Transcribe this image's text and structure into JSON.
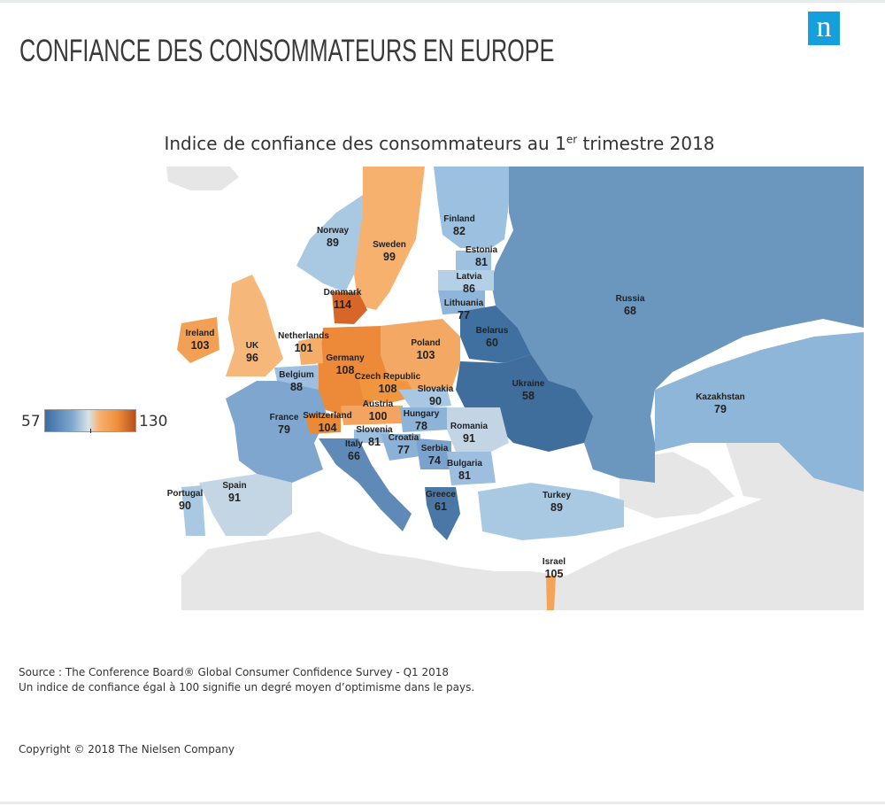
{
  "header": {
    "title": "CONFIANCE DES CONSOMMATEURS EN EUROPE",
    "logo_letter": "n"
  },
  "map": {
    "subtitle_main": "Indice de confiance des consommateurs au 1",
    "subtitle_sup": "er",
    "subtitle_end": " trimestre 2018",
    "legend": {
      "min": "57",
      "max": "130"
    },
    "colors": {
      "low": "#3b6da4",
      "mid": "#d7e3ea",
      "high": "#b5511c",
      "land": "#e6e6e6"
    },
    "countries": [
      {
        "name": "Norway",
        "value": "89"
      },
      {
        "name": "Sweden",
        "value": "99"
      },
      {
        "name": "Finland",
        "value": "82"
      },
      {
        "name": "Estonia",
        "value": "81"
      },
      {
        "name": "Latvia",
        "value": "86"
      },
      {
        "name": "Lithuania",
        "value": "77"
      },
      {
        "name": "Denmark",
        "value": "114"
      },
      {
        "name": "Russia",
        "value": "68"
      },
      {
        "name": "Ireland",
        "value": "103"
      },
      {
        "name": "UK",
        "value": "96"
      },
      {
        "name": "Netherlands",
        "value": "101"
      },
      {
        "name": "Belarus",
        "value": "60"
      },
      {
        "name": "Poland",
        "value": "103"
      },
      {
        "name": "Germany",
        "value": "108"
      },
      {
        "name": "Belgium",
        "value": "88"
      },
      {
        "name": "Czech Republic",
        "value": "108"
      },
      {
        "name": "Ukraine",
        "value": "58"
      },
      {
        "name": "Slovakia",
        "value": "90"
      },
      {
        "name": "Kazakhstan",
        "value": "79"
      },
      {
        "name": "France",
        "value": "79"
      },
      {
        "name": "Austria",
        "value": "100"
      },
      {
        "name": "Switzerland",
        "value": "104"
      },
      {
        "name": "Hungary",
        "value": "78"
      },
      {
        "name": "Romania",
        "value": "91"
      },
      {
        "name": "Slovenia",
        "value": "81"
      },
      {
        "name": "Croatia",
        "value": "77"
      },
      {
        "name": "Italy",
        "value": "66"
      },
      {
        "name": "Serbia",
        "value": "74"
      },
      {
        "name": "Bulgaria",
        "value": "81"
      },
      {
        "name": "Portugal",
        "value": "90"
      },
      {
        "name": "Spain",
        "value": "91"
      },
      {
        "name": "Greece",
        "value": "61"
      },
      {
        "name": "Turkey",
        "value": "89"
      },
      {
        "name": "Israel",
        "value": "105"
      }
    ]
  },
  "footer": {
    "source": "Source : The Conference Board® Global Consumer Confidence Survey - Q1 2018",
    "explanation": "Un indice de confiance égal à 100 signifie un degré moyen d’optimisme dans le pays.",
    "copyright": "Copyright © 2018 The Nielsen Company"
  }
}
